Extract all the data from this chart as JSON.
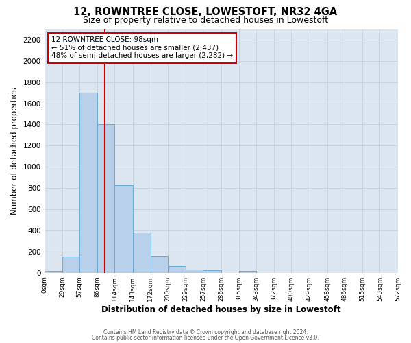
{
  "title": "12, ROWNTREE CLOSE, LOWESTOFT, NR32 4GA",
  "subtitle": "Size of property relative to detached houses in Lowestoft",
  "xlabel": "Distribution of detached houses by size in Lowestoft",
  "ylabel": "Number of detached properties",
  "bin_edges": [
    0,
    29,
    57,
    86,
    114,
    143,
    172,
    200,
    229,
    257,
    286,
    315,
    343,
    372,
    400,
    429,
    458,
    486,
    515,
    543,
    572
  ],
  "bin_heights": [
    15,
    155,
    1700,
    1400,
    830,
    380,
    160,
    65,
    30,
    25,
    0,
    20,
    0,
    0,
    0,
    0,
    0,
    0,
    0,
    0
  ],
  "bar_color": "#b8d0ea",
  "bar_edge_color": "#6aaad4",
  "bar_edge_width": 0.7,
  "property_line_x": 98,
  "property_line_color": "#cc0000",
  "annotation_line1": "12 ROWNTREE CLOSE: 98sqm",
  "annotation_line2": "← 51% of detached houses are smaller (2,437)",
  "annotation_line3": "48% of semi-detached houses are larger (2,282) →",
  "annotation_box_edgecolor": "#cc0000",
  "annotation_box_facecolor": "#ffffff",
  "ylim": [
    0,
    2300
  ],
  "yticks": [
    0,
    200,
    400,
    600,
    800,
    1000,
    1200,
    1400,
    1600,
    1800,
    2000,
    2200
  ],
  "grid_color": "#c8d4e4",
  "background_color": "#dce6f0",
  "footer_line1": "Contains HM Land Registry data © Crown copyright and database right 2024.",
  "footer_line2": "Contains public sector information licensed under the Open Government Licence v3.0.",
  "tick_labels": [
    "0sqm",
    "29sqm",
    "57sqm",
    "86sqm",
    "114sqm",
    "143sqm",
    "172sqm",
    "200sqm",
    "229sqm",
    "257sqm",
    "286sqm",
    "315sqm",
    "343sqm",
    "372sqm",
    "400sqm",
    "429sqm",
    "458sqm",
    "486sqm",
    "515sqm",
    "543sqm",
    "572sqm"
  ]
}
